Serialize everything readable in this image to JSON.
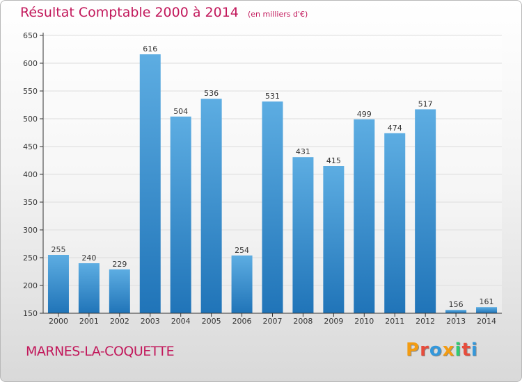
{
  "header": {
    "title": "Résultat Comptable 2000 à 2014",
    "subtitle": "(en milliers d'€)"
  },
  "footer": {
    "commune": "MARNES-LA-COQUETTE",
    "logo_text": "Proxiti",
    "logo_colors": [
      "#f39c12",
      "#e74c3c",
      "#3498db",
      "#f39c12",
      "#2ecc71",
      "#e74c3c",
      "#3498db"
    ]
  },
  "colors": {
    "title": "#c2185b",
    "bar_light": "#5dade2",
    "bar_dark": "#2074b8",
    "grid": "#dddddd",
    "axis": "#333333"
  },
  "chart_data": {
    "type": "bar",
    "title": "Résultat Comptable 2000 à 2014",
    "subtitle": "(en milliers d'€)",
    "xlabel": "",
    "ylabel": "",
    "categories": [
      "2000",
      "2001",
      "2002",
      "2003",
      "2004",
      "2005",
      "2006",
      "2007",
      "2008",
      "2009",
      "2010",
      "2011",
      "2012",
      "2013",
      "2014"
    ],
    "values": [
      255,
      240,
      229,
      616,
      504,
      536,
      254,
      531,
      431,
      415,
      499,
      474,
      517,
      156,
      161
    ],
    "ylim": [
      150,
      650
    ],
    "yticks": [
      150,
      200,
      250,
      300,
      350,
      400,
      450,
      500,
      550,
      600,
      650
    ],
    "grid": true,
    "legend": "none"
  }
}
